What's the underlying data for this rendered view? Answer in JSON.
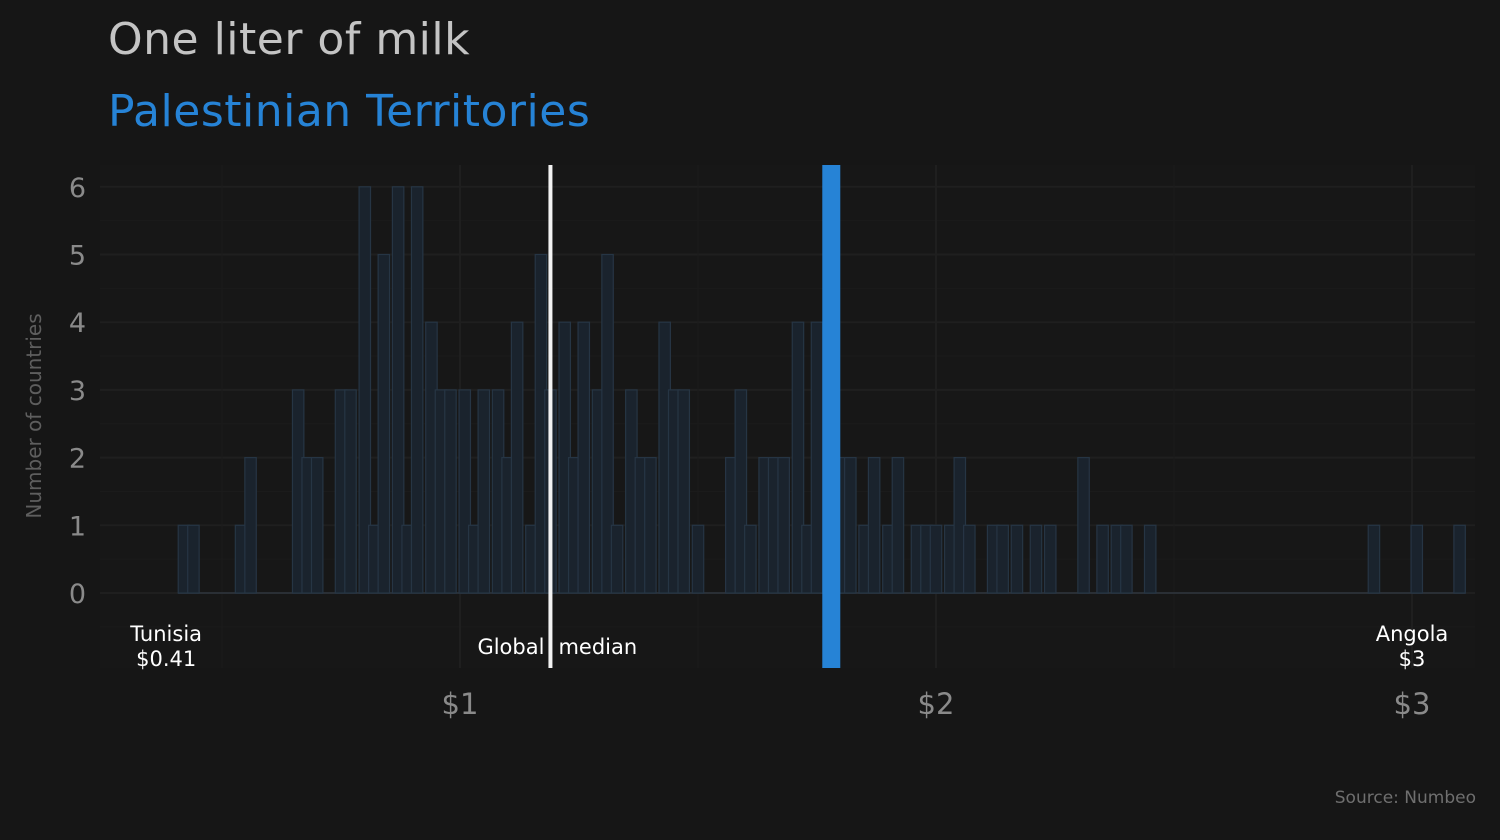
{
  "chart_data": {
    "type": "bar",
    "title": "One liter of milk",
    "subtitle": "Palestinian Territories",
    "source": "Source: Numbeo",
    "ylabel": "Number of countries",
    "xlabel": "",
    "ylim": [
      0,
      6
    ],
    "xlim": [
      0.3,
      3.1
    ],
    "yticks": [
      "0",
      "1",
      "2",
      "3",
      "4",
      "5",
      "6"
    ],
    "xticks": [
      {
        "value": 1,
        "label": "$1"
      },
      {
        "value": 2,
        "label": "$2"
      },
      {
        "value": 3,
        "label": "$3"
      }
    ],
    "bin_width": 0.024,
    "bins": [
      {
        "x": 0.42,
        "count": 1
      },
      {
        "x": 0.44,
        "count": 1
      },
      {
        "x": 0.54,
        "count": 1
      },
      {
        "x": 0.56,
        "count": 2
      },
      {
        "x": 0.66,
        "count": 3
      },
      {
        "x": 0.68,
        "count": 2
      },
      {
        "x": 0.7,
        "count": 2
      },
      {
        "x": 0.75,
        "count": 3
      },
      {
        "x": 0.77,
        "count": 3
      },
      {
        "x": 0.8,
        "count": 6
      },
      {
        "x": 0.82,
        "count": 1
      },
      {
        "x": 0.84,
        "count": 5
      },
      {
        "x": 0.87,
        "count": 6
      },
      {
        "x": 0.89,
        "count": 1
      },
      {
        "x": 0.91,
        "count": 6
      },
      {
        "x": 0.94,
        "count": 4
      },
      {
        "x": 0.96,
        "count": 3
      },
      {
        "x": 0.98,
        "count": 3
      },
      {
        "x": 1.01,
        "count": 3
      },
      {
        "x": 1.03,
        "count": 1
      },
      {
        "x": 1.05,
        "count": 3
      },
      {
        "x": 1.08,
        "count": 3
      },
      {
        "x": 1.1,
        "count": 2
      },
      {
        "x": 1.12,
        "count": 4
      },
      {
        "x": 1.15,
        "count": 1
      },
      {
        "x": 1.17,
        "count": 5
      },
      {
        "x": 1.19,
        "count": 3
      },
      {
        "x": 1.22,
        "count": 4
      },
      {
        "x": 1.24,
        "count": 2
      },
      {
        "x": 1.26,
        "count": 4
      },
      {
        "x": 1.29,
        "count": 3
      },
      {
        "x": 1.31,
        "count": 5
      },
      {
        "x": 1.33,
        "count": 1
      },
      {
        "x": 1.36,
        "count": 3
      },
      {
        "x": 1.38,
        "count": 2
      },
      {
        "x": 1.4,
        "count": 2
      },
      {
        "x": 1.43,
        "count": 4
      },
      {
        "x": 1.45,
        "count": 3
      },
      {
        "x": 1.47,
        "count": 3
      },
      {
        "x": 1.5,
        "count": 1
      },
      {
        "x": 1.57,
        "count": 2
      },
      {
        "x": 1.59,
        "count": 3
      },
      {
        "x": 1.61,
        "count": 1
      },
      {
        "x": 1.64,
        "count": 2
      },
      {
        "x": 1.66,
        "count": 2
      },
      {
        "x": 1.68,
        "count": 2
      },
      {
        "x": 1.71,
        "count": 4
      },
      {
        "x": 1.73,
        "count": 1
      },
      {
        "x": 1.75,
        "count": 4
      },
      {
        "x": 1.78,
        "count": 1
      },
      {
        "x": 1.8,
        "count": 2
      },
      {
        "x": 1.82,
        "count": 2
      },
      {
        "x": 1.85,
        "count": 1
      },
      {
        "x": 1.87,
        "count": 2
      },
      {
        "x": 1.9,
        "count": 1
      },
      {
        "x": 1.92,
        "count": 2
      },
      {
        "x": 1.96,
        "count": 1
      },
      {
        "x": 1.98,
        "count": 1
      },
      {
        "x": 2.0,
        "count": 1
      },
      {
        "x": 2.03,
        "count": 1
      },
      {
        "x": 2.05,
        "count": 2
      },
      {
        "x": 2.07,
        "count": 1
      },
      {
        "x": 2.12,
        "count": 1
      },
      {
        "x": 2.14,
        "count": 1
      },
      {
        "x": 2.17,
        "count": 1
      },
      {
        "x": 2.21,
        "count": 1
      },
      {
        "x": 2.24,
        "count": 1
      },
      {
        "x": 2.31,
        "count": 2
      },
      {
        "x": 2.35,
        "count": 1
      },
      {
        "x": 2.38,
        "count": 1
      },
      {
        "x": 2.4,
        "count": 1
      },
      {
        "x": 2.45,
        "count": 1
      },
      {
        "x": 2.92,
        "count": 1
      },
      {
        "x": 3.01,
        "count": 1
      },
      {
        "x": 3.1,
        "count": 1
      }
    ],
    "global_median": {
      "value": 1.19,
      "label": "Global median"
    },
    "highlight": {
      "value": 1.78,
      "label": "Palestinian Territories"
    },
    "annotations": [
      {
        "country": "Tunisia",
        "price": "$0.41",
        "value": 0.41
      },
      {
        "country": "Angola",
        "price": "$3",
        "value": 3.0
      }
    ],
    "grid": true,
    "colors": {
      "background": "#161616",
      "bars_fill": "#1a232d",
      "bars_stroke": "#263544",
      "highlight": "#2683d6",
      "median_line": "#f2f2f2",
      "grid": "#1f1f1f"
    }
  }
}
